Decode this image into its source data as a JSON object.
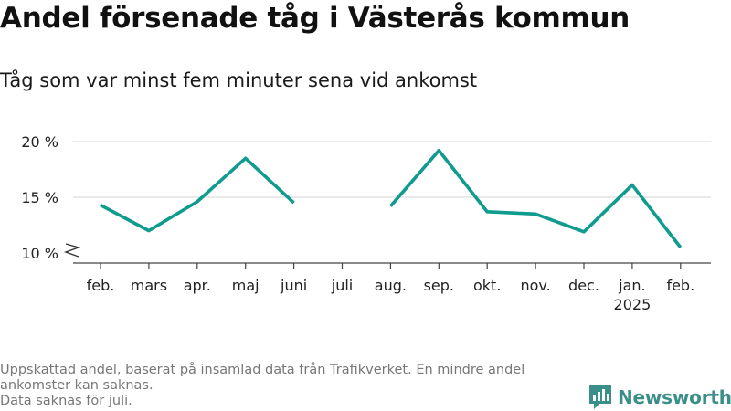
{
  "header": {
    "title": "Andel försenade tåg i Västerås kommun",
    "subtitle": "Tåg som var minst fem minuter sena vid ankomst"
  },
  "chart_data": {
    "type": "line",
    "categories": [
      "feb.",
      "mars",
      "apr.",
      "maj",
      "juni",
      "juli",
      "aug.",
      "sep.",
      "okt.",
      "nov.",
      "dec.",
      "jan.",
      "feb."
    ],
    "category_sublabels": [
      "",
      "",
      "",
      "",
      "",
      "",
      "",
      "",
      "",
      "",
      "",
      "2025",
      ""
    ],
    "series": [
      {
        "values": [
          14.3,
          12.0,
          14.6,
          18.5,
          14.5,
          null,
          14.2,
          19.2,
          13.7,
          13.5,
          11.9,
          16.1,
          10.5
        ]
      }
    ],
    "yticks": [
      10,
      15,
      20
    ],
    "ytick_labels": [
      "10 %",
      "15 %",
      "20 %"
    ],
    "ylim": [
      10,
      20
    ],
    "axis_break": true,
    "grid": true,
    "line_color": "#0f9b8e"
  },
  "footer": {
    "note1": "Uppskattad andel, baserat på insamlad data från Trafikverket. En mindre andel ankomster kan saknas.",
    "note2": "Data saknas för juli.",
    "brand": "Newsworthy"
  },
  "colors": {
    "line": "#0f9b8e",
    "brand": "#3a8f8a",
    "grid": "#dddddd"
  }
}
